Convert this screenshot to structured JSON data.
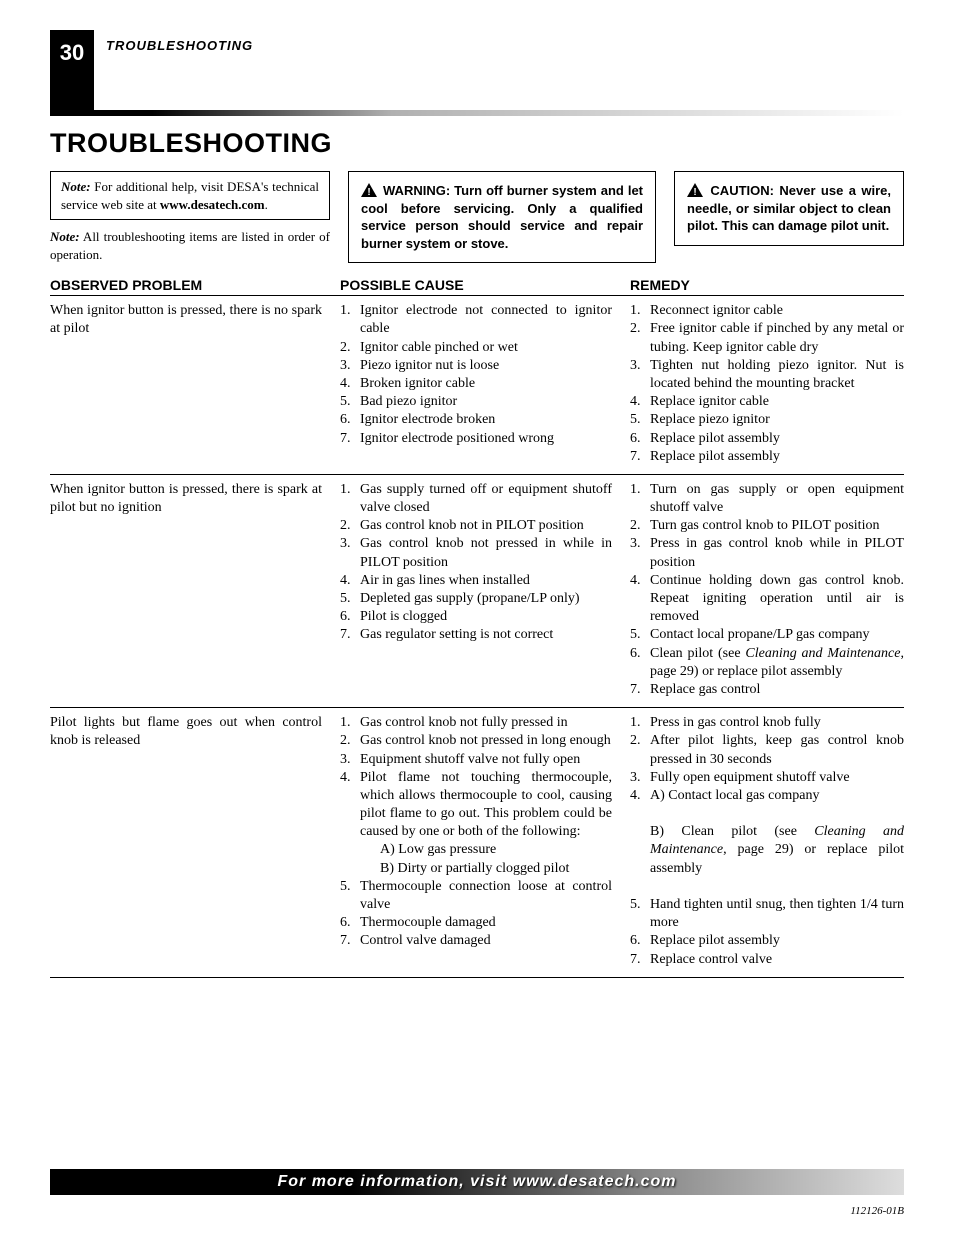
{
  "page_number": "30",
  "section_header_small": "TROUBLESHOOTING",
  "title": "TROUBLESHOOTING",
  "note_box": {
    "prefix": "Note:",
    "text": " For additional help, visit DESA's technical service web site at ",
    "url": "www.desatech.com",
    "suffix": "."
  },
  "note_outer": {
    "prefix": "Note:",
    "text": " All troubleshooting items are listed in order of operation."
  },
  "warning": " WARNING: Turn off burner system and let cool before servicing. Only a qualified service person should service and repair burner system or stove.",
  "caution": " CAUTION: Never use a wire, needle, or similar object to clean pilot. This can damage pilot unit.",
  "headers": {
    "observed": "OBSERVED PROBLEM",
    "cause": "POSSIBLE CAUSE",
    "remedy": "REMEDY"
  },
  "rows": [
    {
      "observed": "When ignitor button is pressed, there is no spark at pilot",
      "causes": [
        "Ignitor electrode not connected to ignitor cable",
        "Ignitor cable pinched or wet",
        "Piezo ignitor nut is loose",
        "Broken ignitor cable",
        "Bad piezo ignitor",
        "Ignitor electrode broken",
        "Ignitor electrode positioned wrong"
      ],
      "remedies": [
        "Reconnect ignitor cable",
        "Free ignitor cable if pinched by any metal or tubing. Keep ignitor cable dry",
        "Tighten nut holding piezo ignitor. Nut is located behind the mounting bracket",
        "Replace ignitor cable",
        "Replace piezo ignitor",
        "Replace pilot assembly",
        "Replace pilot assembly"
      ]
    },
    {
      "observed": "When ignitor button is pressed, there is spark at pilot but no ignition",
      "causes": [
        "Gas supply turned off or equipment shutoff valve closed",
        "Gas control knob not in PILOT position",
        "Gas control knob not pressed in while in PILOT position",
        "Air in gas lines when installed",
        "Depleted gas supply (propane/LP only)",
        "Pilot is clogged",
        "Gas regulator setting is not correct"
      ],
      "remedies_html": [
        "Turn on gas supply or open equipment shutoff valve",
        "Turn gas control knob to PILOT position",
        "Press in gas control knob while in PILOT position",
        "Continue holding down gas control knob. Repeat igniting operation until air is removed",
        "Contact local propane/LP gas company",
        "Clean pilot (see <span class=\"italic\">Cleaning and Maintenance</span>, page 29) or replace pilot assembly",
        "Replace gas control"
      ]
    },
    {
      "observed": "Pilot lights but flame goes out when control knob is released",
      "causes_html": [
        "Gas control knob not fully pressed in",
        "Gas control knob not pressed in long enough",
        "Equipment shutoff valve not fully open",
        "Pilot flame not touching thermocouple, which allows thermocouple to cool, causing pilot flame to go out. This problem could be caused by one or both of the following:<span class=\"sub\">A) Low gas pressure</span><span class=\"sub\">B) Dirty or partially clogged pilot</span>",
        "Thermocouple connection loose at control valve",
        "Thermocouple damaged",
        "Control valve damaged"
      ],
      "remedies_html": [
        "Press in gas control knob fully",
        "After pilot lights, keep gas control knob pressed in 30 seconds",
        "Fully open equipment shutoff valve",
        "A) Contact local gas company<br><br>B) Clean pilot (see <span class=\"italic\">Cleaning and Maintenance</span>, page 29) or replace pilot assembly<br>&nbsp;",
        "Hand tighten until snug, then tighten 1/4 turn more",
        "Replace pilot assembly",
        "Replace control valve"
      ]
    }
  ],
  "footer": "For more information, visit www.desatech.com",
  "doc_code": "112126-01B",
  "colors": {
    "black": "#000000",
    "white": "#ffffff"
  }
}
